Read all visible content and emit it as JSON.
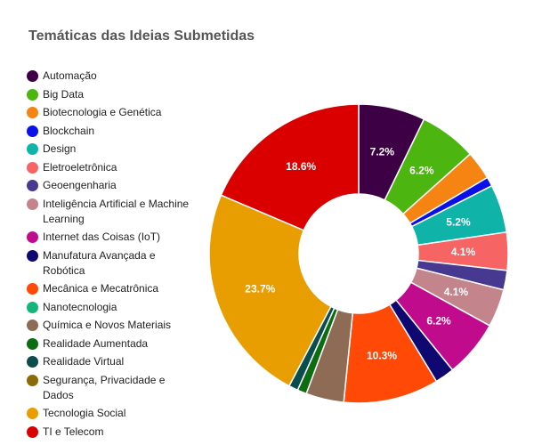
{
  "chart_data": {
    "type": "pie",
    "variant": "donut",
    "title": "Temáticas das Ideias Submetidas",
    "legend_position": "left",
    "categories": [
      "Automação",
      "Big Data",
      "Biotecnologia e Genética",
      "Blockchain",
      "Design",
      "Eletroeletrônica",
      "Geoengenharia",
      "Inteligência Artificial e Machine Learning",
      "Internet das Coisas (IoT)",
      "Manufatura Avançada e Robótica",
      "Mecânica e Mecatrônica",
      "Nanotecnologia",
      "Química e Novos Materiais",
      "Realidade Aumentada",
      "Realidade Virtual",
      "Segurança, Privacidade e Dados",
      "Tecnologia Social",
      "TI e Telecom"
    ],
    "values": [
      7.2,
      6.2,
      3.1,
      1.0,
      5.2,
      4.1,
      2.1,
      4.1,
      6.2,
      2.1,
      10.3,
      0.0,
      4.1,
      1.0,
      1.0,
      0.0,
      23.7,
      18.6
    ],
    "colors": [
      "#3d0044",
      "#4cb50f",
      "#f58412",
      "#0a10e8",
      "#10b3a8",
      "#f76464",
      "#47398f",
      "#c4848c",
      "#c00c8c",
      "#0f0870",
      "#fe4907",
      "#14b57b",
      "#8e6b55",
      "#0b6c10",
      "#0b4c4d",
      "#8a6b07",
      "#e89d00",
      "#da0000"
    ],
    "data_labels": [
      "7.2%",
      "6.2%",
      "",
      "",
      "5.2%",
      "4.1%",
      "",
      "4.1%",
      "6.2%",
      "",
      "10.3%",
      "",
      "",
      "",
      "",
      "",
      "23.7%",
      "18.6%"
    ]
  }
}
